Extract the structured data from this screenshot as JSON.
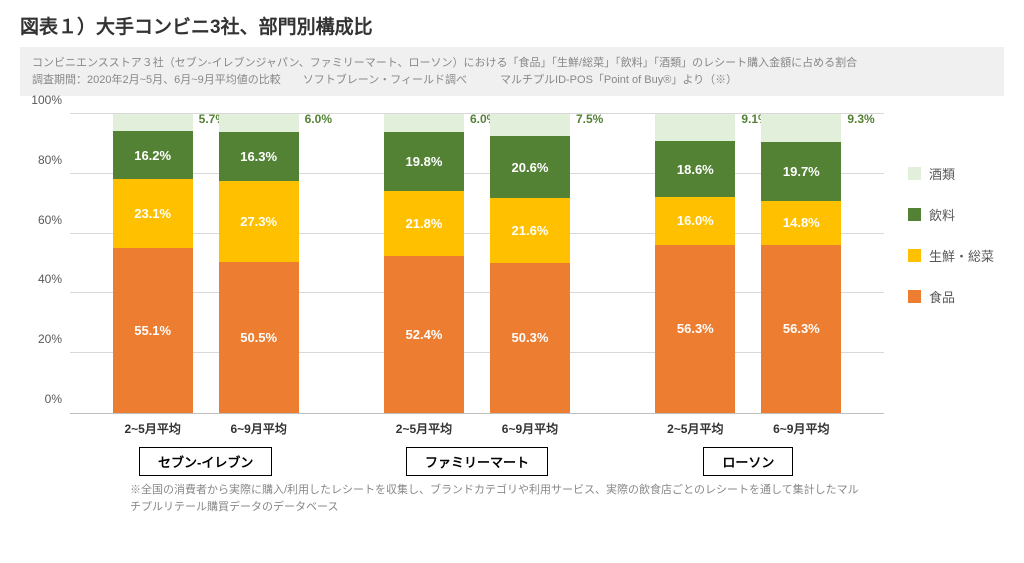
{
  "title": "図表１）大手コンビニ3社、部門別構成比",
  "subtitle_line1": "コンビニエンスストア３社（セブン-イレブンジャパン、ファミリーマート、ローソン）における「食品」「生鮮/総菜」「飲料」「酒類」のレシート購入金額に占める割合",
  "subtitle_line2": "調査期間：2020年2月~5月、6月~9月平均値の比較　　ソフトブレーン・フィールド調べ　　　マルチプルID-POS「Point of Buy®」より（※）",
  "footnote": "※全国の消費者から実際に購入/利用したレシートを収集し、ブランドカテゴリや利用サービス、実際の飲食店ごとのレシートを通して集計したマルチプルリテール購買データのデータベース",
  "chart": {
    "type": "stacked-bar-100",
    "ylim": [
      0,
      100
    ],
    "ytick_step": 20,
    "ytick_suffix": "%",
    "grid_color": "#d9d9d9",
    "axis_color": "#bfbfbf",
    "background_color": "#ffffff",
    "label_fontsize": 12,
    "value_fontsize": 13,
    "categories": [
      {
        "store": "セブン-イレブン",
        "periods": [
          "2~5月平均",
          "6~9月平均"
        ]
      },
      {
        "store": "ファミリーマート",
        "periods": [
          "2~5月平均",
          "6~9月平均"
        ]
      },
      {
        "store": "ローソン",
        "periods": [
          "2~5月平均",
          "6~9月平均"
        ]
      }
    ],
    "series": [
      {
        "name": "食品",
        "color": "#ed7d31",
        "text_color": "#ffffff"
      },
      {
        "name": "生鮮・総菜",
        "color": "#ffc000",
        "text_color": "#ffffff"
      },
      {
        "name": "飲料",
        "color": "#548235",
        "text_color": "#ffffff"
      },
      {
        "name": "酒類",
        "color": "#e2efda",
        "text_color": "#548235"
      }
    ],
    "legend_order": [
      "酒類",
      "飲料",
      "生鮮・総菜",
      "食品"
    ],
    "data": [
      {
        "bar": "seven_a",
        "values": [
          55.1,
          23.1,
          16.2,
          5.7
        ]
      },
      {
        "bar": "seven_b",
        "values": [
          50.5,
          27.3,
          16.3,
          6.0
        ]
      },
      {
        "bar": "fm_a",
        "values": [
          52.4,
          21.8,
          19.8,
          6.0
        ]
      },
      {
        "bar": "fm_b",
        "values": [
          50.3,
          21.6,
          20.6,
          7.5
        ]
      },
      {
        "bar": "lawson_a",
        "values": [
          56.3,
          16.0,
          18.6,
          9.1
        ]
      },
      {
        "bar": "lawson_b",
        "values": [
          56.3,
          14.8,
          19.7,
          9.3
        ]
      }
    ]
  }
}
